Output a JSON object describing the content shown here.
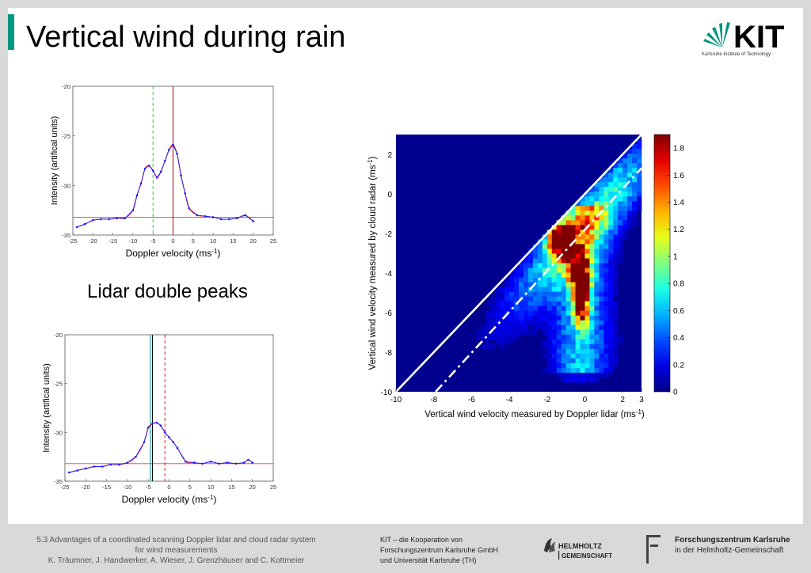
{
  "slide": {
    "title": "Vertical wind during rain",
    "caption": "Lidar double peaks",
    "accent": "#009682"
  },
  "logo": {
    "text": "KIT",
    "subtitle": "Karlsruhe Institute of Technology"
  },
  "footer": {
    "left_line1": "5.3 Advantages of a coordinated scanning Doppler lidar and cloud radar system",
    "left_line2": "for wind measurements",
    "left_line3": "K. Träumner, J. Handwerker, A. Wieser, J. Grenzhäuser and C. Kottmeier",
    "mid_line1": "KIT – die Kooperation von",
    "mid_line2": "Forschungszentrum Karlsruhe GmbH",
    "mid_line3": "und Universität Karlsruhe (TH)",
    "helmholtz_line1": "HELMHOLTZ",
    "helmholtz_line2": "GEMEINSCHAFT",
    "fzk_line1": "Forschungszentrum Karlsruhe",
    "fzk_line2": "in der Helmholtz-Gemeinschaft"
  },
  "chart_data": [
    {
      "type": "line",
      "xlabel": "Doppler velocity (ms",
      "xlabel_sup": "-1",
      "xlabel_end": ")",
      "ylabel": "Intensity (artifical units)",
      "xlim": [
        -25,
        25
      ],
      "ylim": [
        -35,
        -20
      ],
      "xticks": [
        -25,
        -20,
        -15,
        -10,
        -5,
        0,
        5,
        10,
        15,
        20,
        25
      ],
      "yticks": [
        -20,
        -25,
        -30,
        -35
      ],
      "x": [
        -24,
        -22,
        -20,
        -18,
        -16,
        -14,
        -12,
        -10,
        -9,
        -8,
        -7,
        -6,
        -5,
        -4,
        -3,
        -2,
        -1,
        0,
        1,
        2,
        3,
        4,
        6,
        8,
        10,
        12,
        14,
        16,
        18,
        20
      ],
      "series": [
        {
          "values": [
            -34.2,
            -33.9,
            -33.5,
            -33.4,
            -33.4,
            -33.3,
            -33.3,
            -32.5,
            -31,
            -29.8,
            -28.3,
            -28,
            -28.5,
            -29.2,
            -28.6,
            -27.5,
            -26.4,
            -25.9,
            -26.8,
            -29,
            -30.8,
            -32.3,
            -33,
            -33.1,
            -33.2,
            -33.4,
            -33.4,
            -33.3,
            -33,
            -33.6
          ]
        }
      ],
      "reference_line": -33.2,
      "vlines": [
        -5,
        0
      ],
      "colors": {
        "data": "#1a1aff",
        "fit": "#ff3030",
        "vline_dashed": "#33cc33",
        "vline_solid": "#cc0000"
      }
    },
    {
      "type": "line",
      "xlabel": "Doppler velocity (ms",
      "xlabel_sup": "-1",
      "xlabel_end": ")",
      "ylabel": "Intensity (artifical units)",
      "xlim": [
        -25,
        25
      ],
      "ylim": [
        -35,
        -20
      ],
      "xticks": [
        -25,
        -20,
        -15,
        -10,
        -5,
        0,
        5,
        10,
        15,
        20,
        25
      ],
      "yticks": [
        -20,
        -25,
        -30,
        -35
      ],
      "x": [
        -24,
        -22,
        -20,
        -18,
        -16,
        -14,
        -12,
        -10,
        -8,
        -6,
        -5,
        -4,
        -3,
        -2,
        -1,
        0,
        1,
        2,
        4,
        6,
        8,
        10,
        12,
        14,
        16,
        18,
        19,
        20
      ],
      "series": [
        {
          "values": [
            -34.1,
            -33.9,
            -33.7,
            -33.5,
            -33.5,
            -33.3,
            -33.3,
            -33.1,
            -32.5,
            -31,
            -29.5,
            -29.1,
            -29,
            -29.3,
            -30,
            -30.5,
            -31,
            -31.6,
            -33,
            -33.1,
            -33.2,
            -33,
            -33.2,
            -33.1,
            -33.2,
            -33.1,
            -32.8,
            -33.1
          ]
        }
      ],
      "reference_line": -33.2,
      "vlines": [
        -4.5,
        -4,
        -1
      ],
      "colors": {
        "data": "#1a1aff",
        "fit": "#ff3030",
        "vline_teal": "#009999",
        "vline_dashed": "#cc2222"
      }
    },
    {
      "type": "heatmap",
      "xlabel": "Vertical wind velocity measured by Doppler lidar (ms",
      "xlabel_sup": "-1",
      "xlabel_end": ")",
      "ylabel": "Vertical wind velocity measured by cloud radar (ms",
      "ylabel_sup": "-1",
      "ylabel_end": ")",
      "xlim": [
        -10,
        3
      ],
      "ylim": [
        -10,
        3
      ],
      "xticks": [
        -10,
        -8,
        -6,
        -4,
        -2,
        0,
        2,
        3
      ],
      "yticks": [
        2,
        0,
        -2,
        -4,
        -6,
        -8,
        -10
      ],
      "colorbar": {
        "min": 0,
        "max": 1.9,
        "ticks": [
          1.8,
          1.6,
          1.4,
          1.2,
          1,
          0.8,
          0.6,
          0.4,
          0.2,
          0
        ]
      },
      "lines": [
        {
          "name": "1:1",
          "style": "solid",
          "x": [
            -10,
            3
          ],
          "y": [
            -10,
            3
          ]
        },
        {
          "name": "offset",
          "style": "dash-dot",
          "x": [
            -7.9,
            3
          ],
          "y": [
            -10,
            1.3
          ]
        }
      ],
      "density_clusters": [
        {
          "x": -1.3,
          "y": -2.3,
          "peak": 1.85
        },
        {
          "x": -0.2,
          "y": -5.3,
          "peak": 1.8
        },
        {
          "x": -0.3,
          "y": -3.8,
          "peak": 1.4
        }
      ],
      "colors": {
        "background": "#00008f"
      }
    }
  ]
}
